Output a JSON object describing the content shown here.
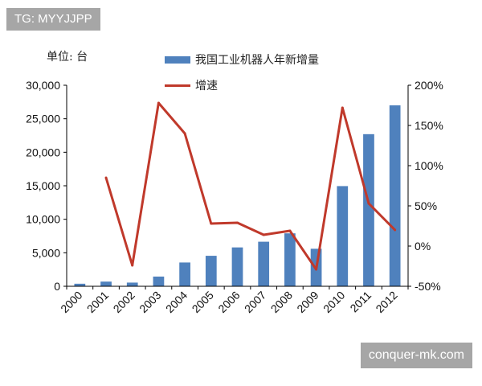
{
  "watermark_top": "TG: MYYJJPP",
  "watermark_bottom": "conquer-mk.com",
  "unit_label": "单位: 台",
  "colors": {
    "bar": "#4f81bd",
    "line": "#c0392b"
  },
  "chart_data": {
    "type": "bar",
    "categories": [
      "2000",
      "2001",
      "2002",
      "2003",
      "2004",
      "2005",
      "2006",
      "2007",
      "2008",
      "2009",
      "2010",
      "2011",
      "2012"
    ],
    "series": [
      {
        "name": "我国工业机器人年新增量",
        "kind": "bar",
        "axis": "left",
        "values": [
          380,
          700,
          550,
          1450,
          3550,
          4550,
          5800,
          6650,
          7900,
          5600,
          14950,
          22700,
          27000
        ]
      },
      {
        "name": "增速",
        "kind": "line",
        "axis": "right",
        "values": [
          null,
          85,
          -24,
          178,
          140,
          28,
          29,
          14,
          19,
          -29,
          172,
          53,
          20
        ]
      }
    ],
    "ylim_left": [
      0,
      30000
    ],
    "ylim_right": [
      -50,
      200
    ],
    "yticks_left": [
      "0",
      "5,000",
      "10,000",
      "15,000",
      "20,000",
      "25,000",
      "30,000"
    ],
    "yticks_right": [
      "-50%",
      "0%",
      "50%",
      "100%",
      "150%",
      "200%"
    ],
    "legend_position": "top-center",
    "grid": false
  }
}
